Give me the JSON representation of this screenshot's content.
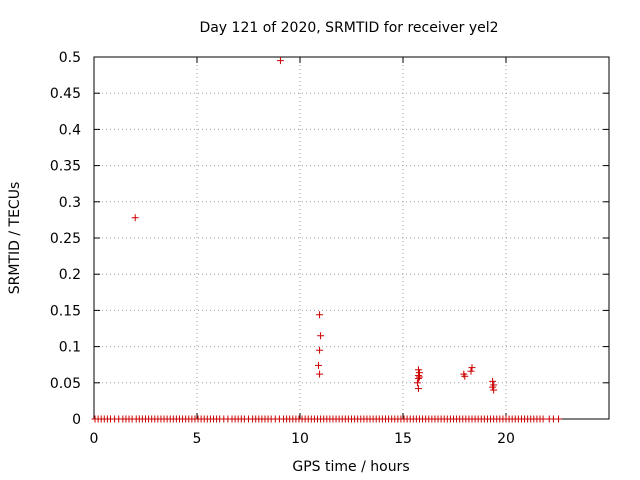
{
  "chart_data": {
    "type": "scatter",
    "title": "Day 121 of 2020, SRMTID for receiver yel2",
    "xlabel": "GPS time / hours",
    "ylabel": "SRMTID / TECUs",
    "xlim": [
      0,
      25
    ],
    "ylim": [
      0,
      0.5
    ],
    "xticks": [
      0,
      5,
      10,
      15,
      20
    ],
    "xtick_labels": [
      "0",
      "5",
      "10",
      "15",
      "20"
    ],
    "yticks": [
      0,
      0.05,
      0.1,
      0.15,
      0.2,
      0.25,
      0.3,
      0.35,
      0.4,
      0.45,
      0.5
    ],
    "ytick_labels": [
      "0",
      "0.05",
      "0.1",
      "0.15",
      "0.2",
      "0.25",
      "0.3",
      "0.35",
      "0.4",
      "0.45",
      "0.5"
    ],
    "grid": true,
    "marker": "+",
    "color": "#cc0000",
    "series": [
      {
        "name": "SRMTID",
        "points": [
          [
            2.0,
            0.278
          ],
          [
            9.05,
            0.495
          ],
          [
            10.95,
            0.144
          ],
          [
            11.0,
            0.115
          ],
          [
            10.95,
            0.095
          ],
          [
            10.9,
            0.074
          ],
          [
            10.95,
            0.062
          ],
          [
            15.75,
            0.068
          ],
          [
            15.8,
            0.064
          ],
          [
            15.75,
            0.06
          ],
          [
            15.8,
            0.058
          ],
          [
            15.75,
            0.056
          ],
          [
            15.7,
            0.05
          ],
          [
            15.75,
            0.042
          ],
          [
            17.95,
            0.062
          ],
          [
            18.0,
            0.059
          ],
          [
            18.35,
            0.071
          ],
          [
            18.3,
            0.066
          ],
          [
            19.35,
            0.052
          ],
          [
            19.4,
            0.047
          ],
          [
            19.35,
            0.044
          ],
          [
            19.4,
            0.04
          ],
          [
            0.05,
            0
          ],
          [
            0.2,
            0
          ],
          [
            0.35,
            0
          ],
          [
            0.5,
            0
          ],
          [
            0.65,
            0
          ],
          [
            0.8,
            0
          ],
          [
            1.0,
            0
          ],
          [
            1.2,
            0
          ],
          [
            1.4,
            0
          ],
          [
            1.55,
            0
          ],
          [
            1.7,
            0
          ],
          [
            1.85,
            0
          ],
          [
            2.05,
            0
          ],
          [
            2.2,
            0
          ],
          [
            2.35,
            0
          ],
          [
            2.5,
            0
          ],
          [
            2.65,
            0
          ],
          [
            2.8,
            0
          ],
          [
            2.95,
            0
          ],
          [
            3.1,
            0
          ],
          [
            3.25,
            0
          ],
          [
            3.4,
            0
          ],
          [
            3.55,
            0
          ],
          [
            3.7,
            0
          ],
          [
            3.85,
            0
          ],
          [
            4.0,
            0
          ],
          [
            4.15,
            0
          ],
          [
            4.3,
            0
          ],
          [
            4.45,
            0
          ],
          [
            4.6,
            0
          ],
          [
            4.75,
            0
          ],
          [
            4.9,
            0
          ],
          [
            5.05,
            0
          ],
          [
            5.2,
            0
          ],
          [
            5.35,
            0
          ],
          [
            5.5,
            0
          ],
          [
            5.65,
            0
          ],
          [
            5.8,
            0
          ],
          [
            5.95,
            0
          ],
          [
            6.1,
            0
          ],
          [
            6.3,
            0
          ],
          [
            6.5,
            0
          ],
          [
            6.7,
            0
          ],
          [
            6.85,
            0
          ],
          [
            7.0,
            0
          ],
          [
            7.15,
            0
          ],
          [
            7.3,
            0
          ],
          [
            7.5,
            0
          ],
          [
            7.7,
            0
          ],
          [
            7.85,
            0
          ],
          [
            8.0,
            0
          ],
          [
            8.15,
            0
          ],
          [
            8.3,
            0
          ],
          [
            8.45,
            0
          ],
          [
            8.6,
            0
          ],
          [
            8.8,
            0
          ],
          [
            9.0,
            0
          ],
          [
            9.2,
            0
          ],
          [
            9.35,
            0
          ],
          [
            9.5,
            0
          ],
          [
            9.65,
            0
          ],
          [
            9.8,
            0
          ],
          [
            9.95,
            0
          ],
          [
            10.1,
            0
          ],
          [
            10.25,
            0
          ],
          [
            10.4,
            0
          ],
          [
            10.55,
            0
          ],
          [
            10.7,
            0
          ],
          [
            10.85,
            0
          ],
          [
            11.0,
            0
          ],
          [
            11.15,
            0
          ],
          [
            11.3,
            0
          ],
          [
            11.45,
            0
          ],
          [
            11.6,
            0
          ],
          [
            11.75,
            0
          ],
          [
            11.9,
            0
          ],
          [
            12.05,
            0
          ],
          [
            12.2,
            0
          ],
          [
            12.35,
            0
          ],
          [
            12.5,
            0
          ],
          [
            12.65,
            0
          ],
          [
            12.8,
            0
          ],
          [
            12.95,
            0
          ],
          [
            13.1,
            0
          ],
          [
            13.25,
            0
          ],
          [
            13.4,
            0
          ],
          [
            13.55,
            0
          ],
          [
            13.7,
            0
          ],
          [
            13.85,
            0
          ],
          [
            14.0,
            0
          ],
          [
            14.15,
            0
          ],
          [
            14.3,
            0
          ],
          [
            14.45,
            0
          ],
          [
            14.6,
            0
          ],
          [
            14.75,
            0
          ],
          [
            14.9,
            0
          ],
          [
            15.05,
            0
          ],
          [
            15.2,
            0
          ],
          [
            15.35,
            0
          ],
          [
            15.5,
            0
          ],
          [
            15.65,
            0
          ],
          [
            15.8,
            0
          ],
          [
            15.95,
            0
          ],
          [
            16.1,
            0
          ],
          [
            16.25,
            0
          ],
          [
            16.4,
            0
          ],
          [
            16.55,
            0
          ],
          [
            16.7,
            0
          ],
          [
            16.85,
            0
          ],
          [
            17.0,
            0
          ],
          [
            17.15,
            0
          ],
          [
            17.3,
            0
          ],
          [
            17.45,
            0
          ],
          [
            17.6,
            0
          ],
          [
            17.75,
            0
          ],
          [
            17.9,
            0
          ],
          [
            18.05,
            0
          ],
          [
            18.2,
            0
          ],
          [
            18.35,
            0
          ],
          [
            18.5,
            0
          ],
          [
            18.65,
            0
          ],
          [
            18.8,
            0
          ],
          [
            18.95,
            0
          ],
          [
            19.1,
            0
          ],
          [
            19.25,
            0
          ],
          [
            19.4,
            0
          ],
          [
            19.55,
            0
          ],
          [
            19.7,
            0
          ],
          [
            19.85,
            0
          ],
          [
            20.0,
            0
          ],
          [
            20.15,
            0
          ],
          [
            20.3,
            0
          ],
          [
            20.45,
            0
          ],
          [
            20.6,
            0
          ],
          [
            20.75,
            0
          ],
          [
            20.9,
            0
          ],
          [
            21.05,
            0
          ],
          [
            21.2,
            0
          ],
          [
            21.35,
            0
          ],
          [
            21.5,
            0
          ],
          [
            21.65,
            0
          ],
          [
            21.8,
            0
          ],
          [
            22.1,
            0
          ],
          [
            22.3,
            0
          ],
          [
            22.55,
            0
          ]
        ]
      }
    ]
  }
}
